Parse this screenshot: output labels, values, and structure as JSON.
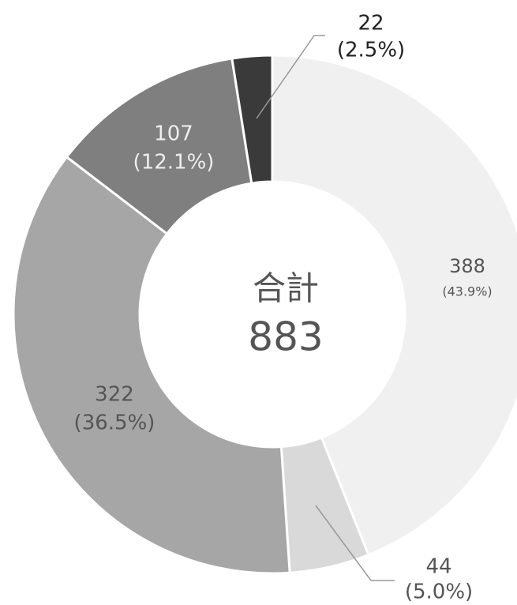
{
  "chart_data": {
    "type": "donut",
    "categories": [
      null,
      null,
      null,
      null,
      null
    ],
    "values": [
      388,
      44,
      322,
      107,
      22
    ],
    "percent_labels": [
      "(43.9%)",
      "(5.0%)",
      "(36.5%)",
      "(12.1%)",
      "(2.5%)"
    ],
    "colors": [
      "#f0f0f0",
      "#d9d9d9",
      "#a6a6a6",
      "#7f7f7f",
      "#3a3a3a"
    ],
    "center_label": "合計",
    "total": 883
  }
}
